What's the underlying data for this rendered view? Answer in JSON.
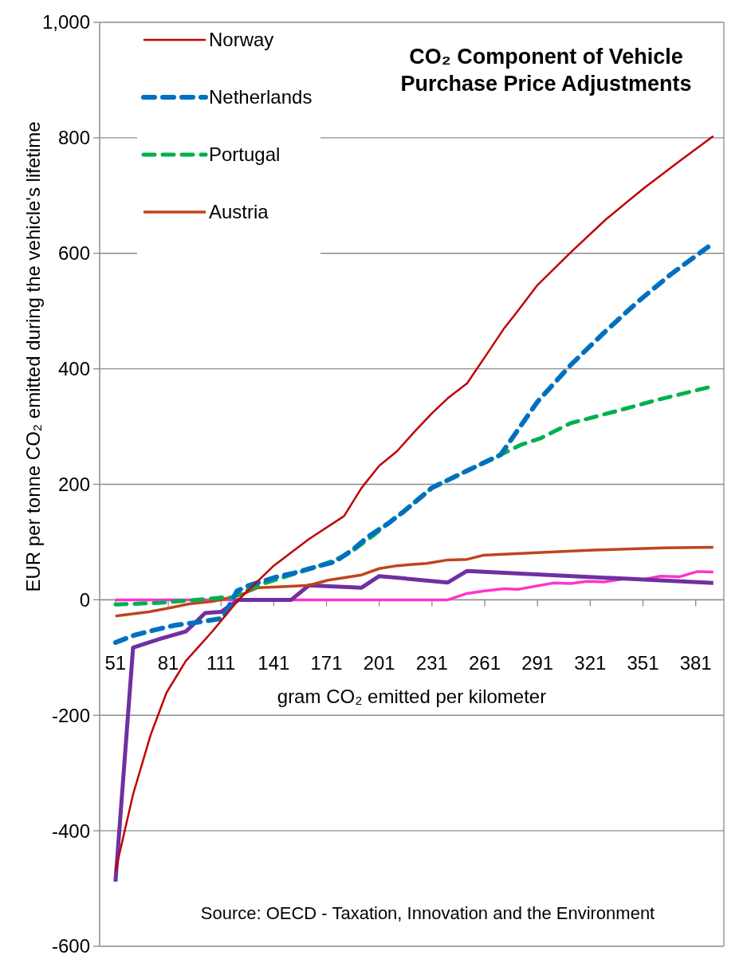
{
  "chart_data": {
    "type": "line",
    "title": "CO₂ Component of Vehicle Purchase Price Adjustments",
    "xlabel": "gram CO₂ emitted per kilometer",
    "ylabel": "EUR per tonne CO₂ emitted during the vehicle's lifetime",
    "annotations": [
      "Source: OECD - Taxation, Innovation and the Environment"
    ],
    "xlim": [
      42,
      397
    ],
    "xticks": [
      51,
      81,
      111,
      141,
      171,
      201,
      231,
      261,
      291,
      321,
      351,
      381
    ],
    "ylim": [
      -600,
      1000
    ],
    "yticks": [
      -600,
      -400,
      -200,
      0,
      200,
      400,
      600,
      800,
      {
        "value": 1000,
        "label": "1,000"
      }
    ],
    "grid": "y",
    "legend": "top left",
    "marker": "none",
    "series": [
      {
        "name": "Norway",
        "color": "#c00000",
        "line_style": "solid",
        "x": [
          51,
          61,
          71,
          80,
          91,
          106,
          121,
          141,
          161,
          181,
          191,
          201,
          211,
          221,
          231,
          240,
          251,
          263,
          272,
          280,
          291,
          310,
          330,
          352,
          372,
          391
        ],
        "values": [
          -470,
          -337,
          -234,
          -161,
          -106,
          -55,
          0,
          59,
          105,
          145,
          194,
          232,
          257,
          291,
          323,
          349,
          375,
          429,
          470,
          501,
          545,
          602,
          659,
          714,
          760,
          803
        ]
      },
      {
        "name": "Netherlands",
        "color": "#0070c0",
        "line_style": "dashed",
        "x": [
          51,
          62,
          75,
          85,
          100,
          112,
          120,
          127,
          142,
          152,
          165,
          176,
          186,
          195,
          206,
          215,
          231,
          250,
          270,
          278,
          291,
          310,
          329,
          348,
          367,
          388
        ],
        "values": [
          -74,
          -61,
          -51,
          -44,
          -38,
          -32,
          15,
          25,
          39,
          46,
          57,
          66,
          87,
          110,
          132,
          153,
          194,
          222,
          251,
          286,
          343,
          407,
          463,
          516,
          564,
          611
        ]
      },
      {
        "name": "Portugal",
        "color": "#00b050",
        "line_style": "dashed",
        "x": [
          51,
          62,
          77,
          102,
          112,
          117,
          127,
          136,
          154,
          167,
          176,
          185,
          197,
          206,
          215,
          231,
          250,
          270,
          282,
          293,
          310,
          335,
          359,
          391
        ],
        "values": [
          -8,
          -7,
          -5,
          1,
          4,
          4,
          18,
          29,
          46,
          59,
          69,
          83,
          110,
          132,
          153,
          194,
          222,
          251,
          269,
          280,
          306,
          326,
          346,
          370
        ]
      },
      {
        "name": "Austria",
        "color": "#c0441c",
        "line_style": "solid",
        "x": [
          51,
          70,
          82,
          93,
          106,
          121,
          132,
          148,
          161,
          172,
          191,
          201,
          211,
          228,
          240,
          251,
          260,
          286,
          323,
          363,
          391
        ],
        "values": [
          -28,
          -21,
          -14,
          -7,
          -3,
          7,
          21,
          23,
          25,
          34,
          43,
          54,
          59,
          63,
          69,
          70,
          77,
          81,
          86,
          90,
          91
        ]
      },
      {
        "color": "#7030a0",
        "line_style": "solid",
        "x": [
          51,
          61,
          76,
          91,
          102,
          111,
          121,
          151,
          161,
          191,
          201,
          240,
          251,
          391
        ],
        "values": [
          -488,
          -83,
          -68,
          -55,
          -23,
          -21,
          0,
          0,
          25,
          21,
          41,
          30,
          50,
          29
        ]
      },
      {
        "color": "#ff33cc",
        "line_style": "solid",
        "x": [
          51,
          240,
          251,
          260,
          272,
          280,
          300,
          310,
          319,
          329,
          342,
          351,
          361,
          372,
          382,
          391
        ],
        "values": [
          0,
          0,
          11,
          15,
          19,
          18,
          29,
          28,
          32,
          31,
          37,
          35,
          41,
          40,
          49,
          48
        ]
      }
    ]
  }
}
